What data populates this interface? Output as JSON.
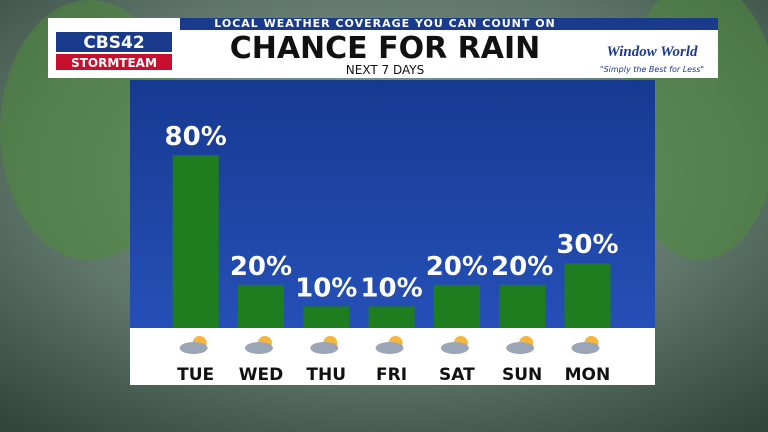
{
  "header": {
    "banner": "LOCAL WEATHER COVERAGE YOU CAN COUNT ON",
    "station": "CBS42",
    "team": "STORMTEAM",
    "sponsor": "Window World",
    "sponsor_tagline": "\"Simply the Best for Less\""
  },
  "chart_data": {
    "type": "bar",
    "title": "CHANCE FOR RAIN",
    "subtitle": "NEXT 7 DAYS",
    "categories": [
      "TUE",
      "WED",
      "THU",
      "FRI",
      "SAT",
      "SUN",
      "MON"
    ],
    "values": [
      80,
      20,
      10,
      10,
      20,
      20,
      30
    ],
    "value_labels": [
      "80%",
      "20%",
      "10%",
      "10%",
      "20%",
      "20%",
      "30%"
    ],
    "color": "#1e7d1e",
    "ylim": [
      0,
      100
    ]
  }
}
